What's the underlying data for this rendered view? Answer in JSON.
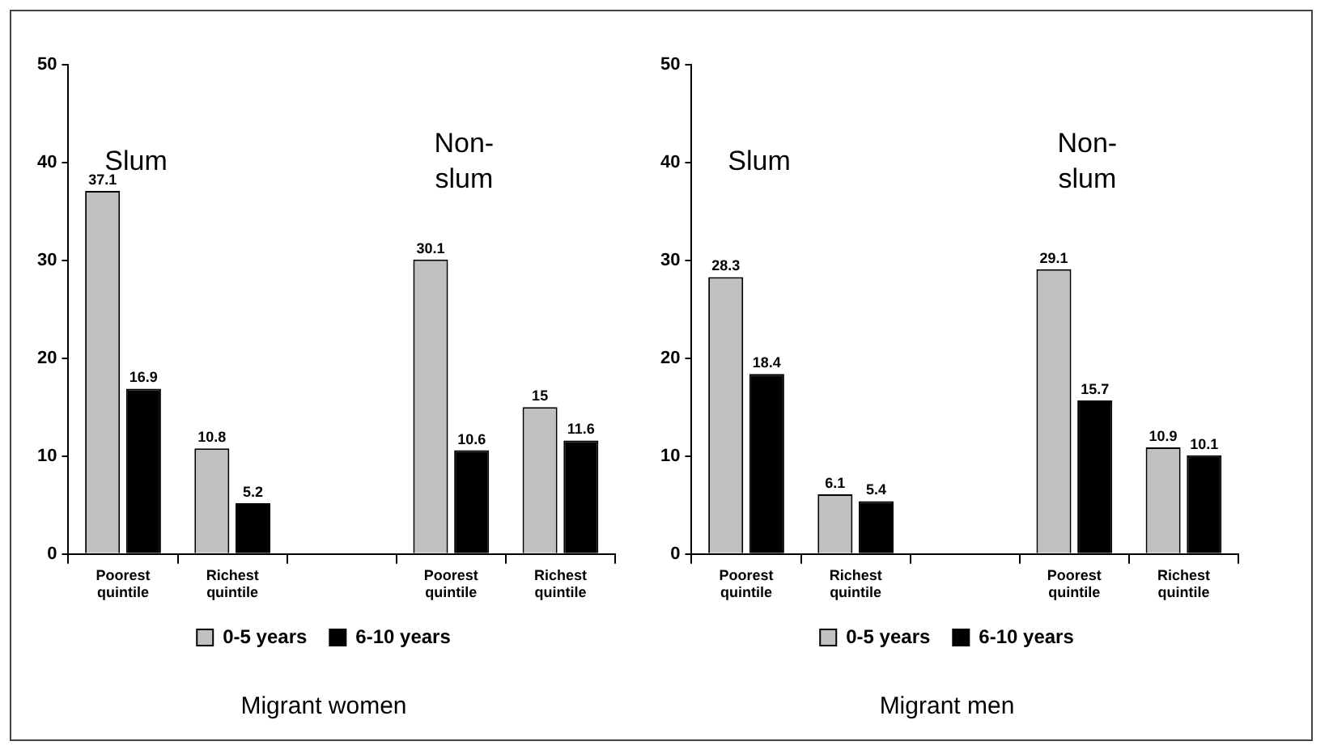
{
  "chart_data": [
    {
      "type": "bar",
      "title": "Migrant women",
      "categories": [
        "Poorest quintile",
        "Richest quintile",
        null,
        "Poorest quintile",
        "Richest quintile"
      ],
      "series": [
        {
          "name": "0-5 years",
          "color": "#c0c0c0",
          "values": [
            37.1,
            10.8,
            null,
            30.1,
            15
          ]
        },
        {
          "name": "6-10 years",
          "color": "#000000",
          "values": [
            16.9,
            5.2,
            null,
            10.6,
            11.6
          ]
        }
      ],
      "ylim": [
        0,
        50
      ],
      "yticks": [
        0,
        10,
        20,
        30,
        40,
        50
      ],
      "legend": "bottom",
      "data_labels": true,
      "annotations": [
        "Slum",
        "Non-slum"
      ]
    },
    {
      "type": "bar",
      "title": "Migrant men",
      "categories": [
        "Poorest quintile",
        "Richest quintile",
        null,
        "Poorest quintile",
        "Richest quintile"
      ],
      "series": [
        {
          "name": "0-5 years",
          "color": "#c0c0c0",
          "values": [
            28.3,
            6.1,
            null,
            29.1,
            10.9
          ]
        },
        {
          "name": "6-10 years",
          "color": "#000000",
          "values": [
            18.4,
            5.4,
            null,
            15.7,
            10.1
          ]
        }
      ],
      "ylim": [
        0,
        50
      ],
      "yticks": [
        0,
        10,
        20,
        30,
        40,
        50
      ],
      "legend": "bottom",
      "data_labels": true,
      "annotations": [
        "Slum",
        "Non-slum"
      ]
    }
  ]
}
